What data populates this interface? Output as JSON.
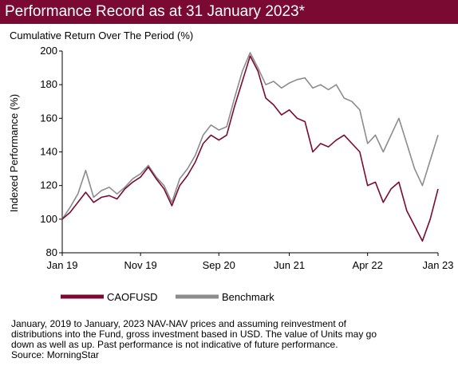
{
  "header": {
    "title": "Performance Record as at 31 January 2023*"
  },
  "colors": {
    "header_bg": "#7a0a32",
    "fund": "#7a0a32",
    "benchmark": "#8c8c8c"
  },
  "chart_data": {
    "type": "line",
    "title": "Cumulative Return Over The Period (%)",
    "xlabel": "",
    "ylabel": "Indexed Performance (%)",
    "ylim": [
      80,
      200
    ],
    "yticks": [
      80,
      100,
      120,
      140,
      160,
      180,
      200
    ],
    "xlim": [
      "2019-01",
      "2023-01"
    ],
    "xticks": [
      {
        "date": "2019-01",
        "label": "Jan 19"
      },
      {
        "date": "2019-11",
        "label": "Nov 19"
      },
      {
        "date": "2020-09",
        "label": "Sep 20"
      },
      {
        "date": "2021-06",
        "label": "Jun 21"
      },
      {
        "date": "2022-04",
        "label": "Apr 22"
      },
      {
        "date": "2023-01",
        "label": "Jan 23"
      }
    ],
    "grid": false,
    "legend_position": "bottom-left",
    "series": [
      {
        "name": "CAOFUSD",
        "points": [
          [
            "2019-01",
            100
          ],
          [
            "2019-02",
            104
          ],
          [
            "2019-03",
            110
          ],
          [
            "2019-04",
            116
          ],
          [
            "2019-05",
            110
          ],
          [
            "2019-06",
            113
          ],
          [
            "2019-07",
            114
          ],
          [
            "2019-08",
            112
          ],
          [
            "2019-09",
            118
          ],
          [
            "2019-10",
            122
          ],
          [
            "2019-11",
            125
          ],
          [
            "2019-12",
            131
          ],
          [
            "2020-01",
            124
          ],
          [
            "2020-02",
            118
          ],
          [
            "2020-03",
            108
          ],
          [
            "2020-04",
            120
          ],
          [
            "2020-05",
            126
          ],
          [
            "2020-06",
            134
          ],
          [
            "2020-07",
            145
          ],
          [
            "2020-08",
            150
          ],
          [
            "2020-09",
            147
          ],
          [
            "2020-10",
            150
          ],
          [
            "2020-11",
            167
          ],
          [
            "2020-12",
            182
          ],
          [
            "2021-01",
            197
          ],
          [
            "2021-02",
            188
          ],
          [
            "2021-03",
            172
          ],
          [
            "2021-04",
            168
          ],
          [
            "2021-05",
            162
          ],
          [
            "2021-06",
            165
          ],
          [
            "2021-07",
            160
          ],
          [
            "2021-08",
            158
          ],
          [
            "2021-09",
            140
          ],
          [
            "2021-10",
            145
          ],
          [
            "2021-11",
            143
          ],
          [
            "2021-12",
            147
          ],
          [
            "2022-01",
            150
          ],
          [
            "2022-02",
            145
          ],
          [
            "2022-03",
            140
          ],
          [
            "2022-04",
            120
          ],
          [
            "2022-05",
            122
          ],
          [
            "2022-06",
            110
          ],
          [
            "2022-07",
            118
          ],
          [
            "2022-08",
            122
          ],
          [
            "2022-09",
            105
          ],
          [
            "2022-10",
            96
          ],
          [
            "2022-11",
            87
          ],
          [
            "2022-12",
            100
          ],
          [
            "2023-01",
            118
          ]
        ]
      },
      {
        "name": "Benchmark",
        "points": [
          [
            "2019-01",
            100
          ],
          [
            "2019-02",
            107
          ],
          [
            "2019-03",
            115
          ],
          [
            "2019-04",
            129
          ],
          [
            "2019-05",
            113
          ],
          [
            "2019-06",
            117
          ],
          [
            "2019-07",
            119
          ],
          [
            "2019-08",
            115
          ],
          [
            "2019-09",
            119
          ],
          [
            "2019-10",
            124
          ],
          [
            "2019-11",
            127
          ],
          [
            "2019-12",
            132
          ],
          [
            "2020-01",
            125
          ],
          [
            "2020-02",
            120
          ],
          [
            "2020-03",
            110
          ],
          [
            "2020-04",
            124
          ],
          [
            "2020-05",
            130
          ],
          [
            "2020-06",
            138
          ],
          [
            "2020-07",
            150
          ],
          [
            "2020-08",
            156
          ],
          [
            "2020-09",
            153
          ],
          [
            "2020-10",
            155
          ],
          [
            "2020-11",
            172
          ],
          [
            "2020-12",
            188
          ],
          [
            "2021-01",
            199
          ],
          [
            "2021-02",
            190
          ],
          [
            "2021-03",
            180
          ],
          [
            "2021-04",
            182
          ],
          [
            "2021-05",
            178
          ],
          [
            "2021-06",
            181
          ],
          [
            "2021-07",
            183
          ],
          [
            "2021-08",
            184
          ],
          [
            "2021-09",
            178
          ],
          [
            "2021-10",
            180
          ],
          [
            "2021-11",
            177
          ],
          [
            "2021-12",
            180
          ],
          [
            "2022-01",
            172
          ],
          [
            "2022-02",
            170
          ],
          [
            "2022-03",
            165
          ],
          [
            "2022-04",
            145
          ],
          [
            "2022-05",
            150
          ],
          [
            "2022-06",
            140
          ],
          [
            "2022-07",
            150
          ],
          [
            "2022-08",
            160
          ],
          [
            "2022-09",
            145
          ],
          [
            "2022-10",
            130
          ],
          [
            "2022-11",
            120
          ],
          [
            "2022-12",
            135
          ],
          [
            "2023-01",
            150
          ]
        ]
      }
    ]
  },
  "footnote": {
    "lines": [
      "January, 2019 to January, 2023 NAV-NAV prices and assuming reinvestment of",
      "distributions into the Fund, gross investment based in USD. The value of Units may go",
      "down as well as up. Past performance is not indicative of future performance.",
      "Source: MorningStar"
    ]
  }
}
